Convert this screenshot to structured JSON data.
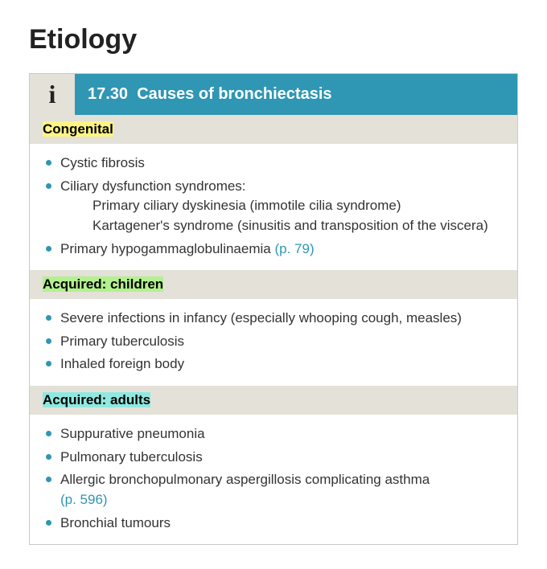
{
  "title": "Etiology",
  "box": {
    "icon_label": "i",
    "number": "17.30",
    "heading": "Causes of bronchiectasis",
    "header_bg": "#2f96b4",
    "header_text_color": "#ffffff",
    "icon_cell_bg": "#e3e1d8",
    "section_header_bg": "#e3e1d8",
    "bullet_color": "#2f96b4",
    "link_color": "#2f96b4",
    "border_color": "#c9c9c9"
  },
  "sections": [
    {
      "title": "Congenital",
      "highlight": "yellow",
      "items": [
        {
          "text": "Cystic fibrosis"
        },
        {
          "text": "Ciliary dysfunction syndromes:",
          "sub": [
            "Primary ciliary dyskinesia (immotile cilia syndrome)",
            "Kartagener's syndrome (sinusitis and transposition of the viscera)"
          ]
        },
        {
          "text": "Primary hypogammaglobulinaemia ",
          "ref": "(p. 79)"
        }
      ]
    },
    {
      "title": "Acquired: children",
      "highlight": "green",
      "items": [
        {
          "text": "Severe infections in infancy (especially whooping cough, measles)"
        },
        {
          "text": "Primary tuberculosis"
        },
        {
          "text": "Inhaled foreign body"
        }
      ]
    },
    {
      "title": "Acquired: adults",
      "highlight": "teal",
      "items": [
        {
          "text": "Suppurative pneumonia"
        },
        {
          "text": "Pulmonary tuberculosis"
        },
        {
          "text": "Allergic bronchopulmonary aspergillosis complicating asthma",
          "sub": [],
          "ref_below": "(p. 596)"
        },
        {
          "text": "Bronchial tumours"
        }
      ]
    }
  ]
}
